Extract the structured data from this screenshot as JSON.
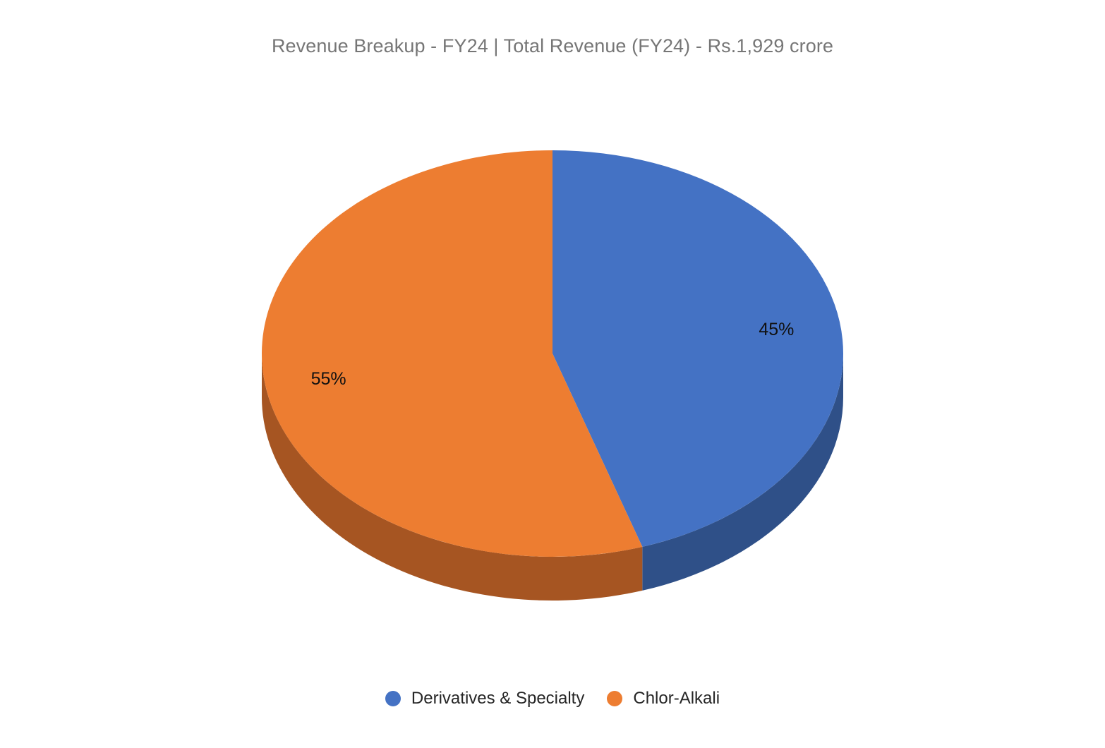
{
  "chart_data": {
    "type": "pie",
    "title": "Revenue Breakup - FY24 | Total Revenue (FY24) - Rs.1,929 crore",
    "categories": [
      "Derivatives & Specialty",
      "Chlor-Alkali"
    ],
    "values": [
      45,
      55
    ],
    "data_labels": [
      "45%",
      "55%"
    ],
    "colors": [
      "#4472C4",
      "#ED7D31"
    ],
    "side_colors": [
      "#2F5088",
      "#A65522"
    ],
    "legend_position": "bottom",
    "three_d": true
  }
}
